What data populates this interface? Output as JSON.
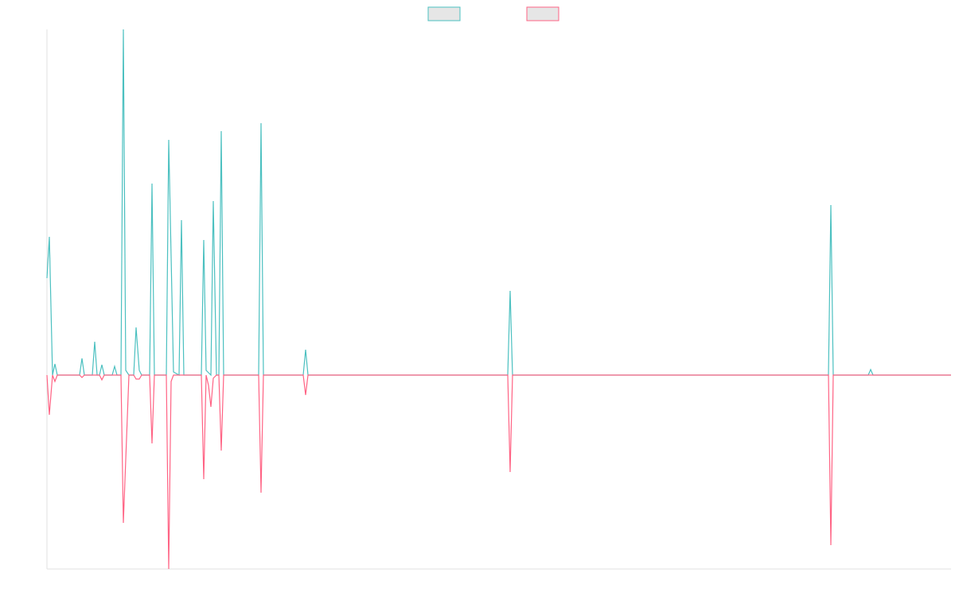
{
  "chart_data": {
    "type": "line",
    "xlim": [
      0,
      1136
    ],
    "ylim": [
      -244,
      435
    ],
    "legend": "top",
    "series": [
      {
        "color": "#4bc0c0",
        "x": [
          0,
          3,
          7,
          10,
          13,
          41,
          44,
          47,
          57,
          60,
          63,
          66,
          69,
          72,
          82,
          85,
          88,
          93,
          96,
          99,
          103,
          109,
          112,
          116,
          119,
          129,
          132,
          135,
          150,
          153,
          159,
          166,
          169,
          172,
          194,
          197,
          200,
          206,
          209,
          213,
          216,
          219,
          222,
          266,
          269,
          272,
          322,
          325,
          328,
          579,
          582,
          585,
          982,
          985,
          988,
          1032,
          1035,
          1038,
          1136
        ],
        "values": [
          122,
          174,
          0,
          14,
          0,
          0,
          21,
          0,
          0,
          42,
          0,
          0,
          13,
          0,
          0,
          11,
          0,
          0,
          435,
          6,
          0,
          0,
          60,
          6,
          0,
          0,
          241,
          0,
          0,
          296,
          4,
          0,
          195,
          0,
          0,
          170,
          6,
          0,
          219,
          0,
          0,
          307,
          0,
          0,
          317,
          0,
          0,
          32,
          0,
          0,
          106,
          0,
          0,
          214,
          0,
          0,
          7,
          0,
          0
        ]
      },
      {
        "color": "#ff6384",
        "x": [
          0,
          3,
          7,
          10,
          13,
          41,
          44,
          47,
          66,
          69,
          72,
          93,
          96,
          103,
          109,
          112,
          116,
          119,
          129,
          132,
          135,
          150,
          153,
          156,
          159,
          194,
          197,
          200,
          203,
          206,
          209,
          213,
          216,
          219,
          222,
          266,
          269,
          272,
          322,
          325,
          328,
          579,
          582,
          585,
          982,
          985,
          988,
          1136
        ],
        "values": [
          0,
          -50,
          0,
          -8,
          0,
          0,
          -3,
          0,
          0,
          -6,
          0,
          0,
          -186,
          0,
          0,
          -5,
          -5,
          0,
          0,
          -86,
          0,
          0,
          -244,
          -8,
          0,
          0,
          -131,
          0,
          -13,
          -40,
          -4,
          0,
          0,
          -95,
          0,
          0,
          -148,
          0,
          0,
          -25,
          0,
          0,
          -122,
          0,
          0,
          -214,
          0,
          0
        ]
      }
    ]
  }
}
